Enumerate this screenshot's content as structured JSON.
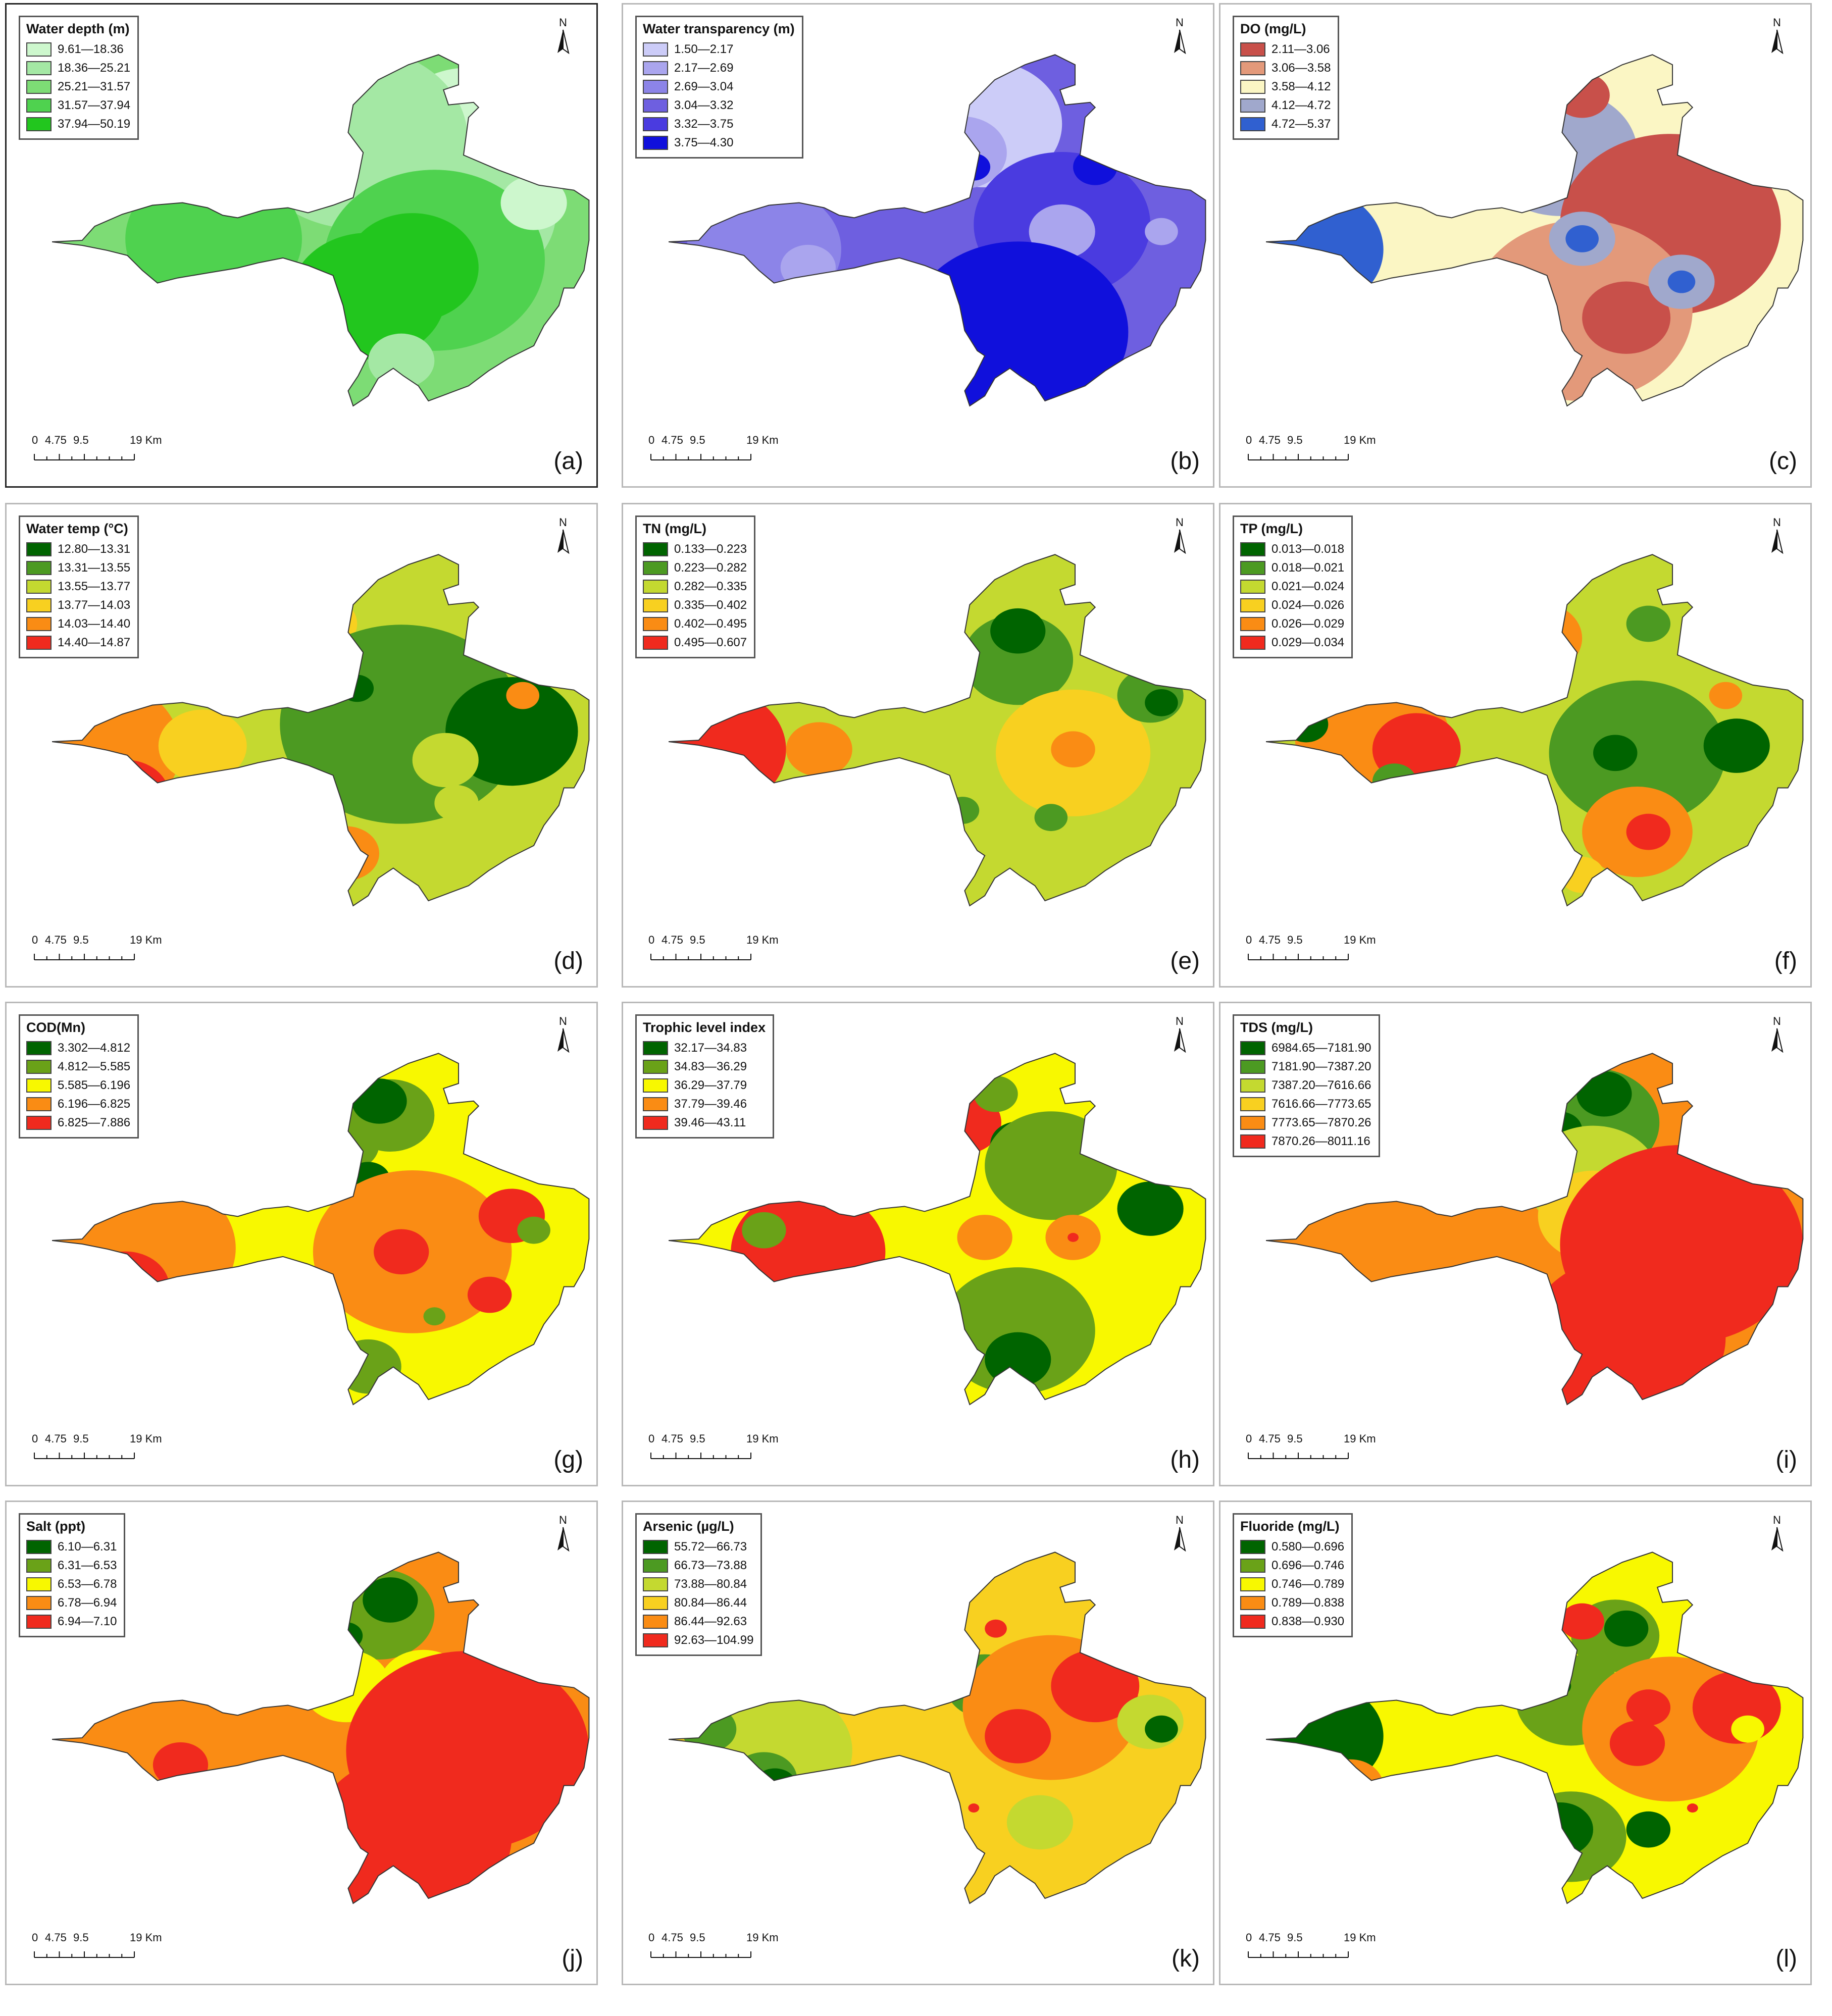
{
  "north_label": "N",
  "scale_labels": [
    "0",
    "4.75",
    "9.5",
    "19 Km"
  ],
  "panels": [
    {
      "label": "(a)",
      "title": "Water depth (m)",
      "classes": [
        "9.61—18.36",
        "18.36—25.21",
        "25.21—31.57",
        "31.57—37.94",
        "37.94—50.19"
      ],
      "colors": [
        "#cdf7cd",
        "#a4e8a4",
        "#7ddc75",
        "#4fd24f",
        "#22c61e"
      ],
      "base": 2,
      "blobs": [
        [
          0.78,
          0.22,
          0.14,
          0
        ],
        [
          0.58,
          0.24,
          0.2,
          1
        ],
        [
          0.78,
          0.45,
          0.16,
          1
        ],
        [
          0.32,
          0.52,
          0.16,
          3
        ],
        [
          0.72,
          0.58,
          0.2,
          3
        ],
        [
          0.68,
          0.6,
          0.12,
          4
        ],
        [
          0.6,
          0.68,
          0.14,
          4
        ],
        [
          0.66,
          0.86,
          0.06,
          1
        ],
        [
          0.9,
          0.42,
          0.06,
          0
        ]
      ]
    },
    {
      "label": "(b)",
      "title": "Water transparency (m)",
      "classes": [
        "1.50—2.17",
        "2.17—2.69",
        "2.69—3.04",
        "3.04—3.32",
        "3.32—3.75",
        "3.75—4.30"
      ],
      "colors": [
        "#ccccf8",
        "#aaa5ee",
        "#8c84e8",
        "#6e5fe0",
        "#4a3be0",
        "#1010dc"
      ],
      "base": 3,
      "blobs": [
        [
          0.6,
          0.2,
          0.14,
          0
        ],
        [
          0.56,
          0.28,
          0.08,
          1
        ],
        [
          0.2,
          0.55,
          0.14,
          2
        ],
        [
          0.28,
          0.6,
          0.05,
          1
        ],
        [
          0.74,
          0.48,
          0.16,
          4
        ],
        [
          0.74,
          0.5,
          0.06,
          1
        ],
        [
          0.66,
          0.78,
          0.2,
          5
        ],
        [
          0.64,
          0.88,
          0.16,
          5
        ],
        [
          0.8,
          0.32,
          0.04,
          5
        ],
        [
          0.58,
          0.32,
          0.03,
          5
        ],
        [
          0.92,
          0.5,
          0.03,
          1
        ]
      ]
    },
    {
      "label": "(c)",
      "title": "DO (mg/L)",
      "classes": [
        "2.11—3.06",
        "3.06—3.58",
        "3.58—4.12",
        "4.12—4.72",
        "4.72—5.37"
      ],
      "colors": [
        "#c8504a",
        "#e3997a",
        "#fbf6c4",
        "#a0a8cc",
        "#3060d0"
      ],
      "base": 2,
      "blobs": [
        [
          0.1,
          0.55,
          0.14,
          4
        ],
        [
          0.3,
          0.5,
          0.06,
          2
        ],
        [
          0.56,
          0.28,
          0.14,
          3
        ],
        [
          0.76,
          0.48,
          0.2,
          0
        ],
        [
          0.6,
          0.72,
          0.2,
          1
        ],
        [
          0.68,
          0.74,
          0.08,
          0
        ],
        [
          0.78,
          0.64,
          0.06,
          3
        ],
        [
          0.78,
          0.64,
          0.025,
          4
        ],
        [
          0.6,
          0.52,
          0.06,
          3
        ],
        [
          0.6,
          0.52,
          0.03,
          4
        ],
        [
          0.5,
          0.26,
          0.04,
          4
        ],
        [
          0.6,
          0.12,
          0.05,
          0
        ],
        [
          0.66,
          0.4,
          0.03,
          0
        ]
      ]
    },
    {
      "label": "(d)",
      "title": "Water temp (°C)",
      "classes": [
        "12.80—13.31",
        "13.31—13.55",
        "13.55—13.77",
        "13.77—14.03",
        "14.03—14.40",
        "14.40—14.87"
      ],
      "colors": [
        "#006400",
        "#4c9a22",
        "#c4d930",
        "#f8d020",
        "#fa8c14",
        "#f02a1e"
      ],
      "base": 2,
      "blobs": [
        [
          0.1,
          0.55,
          0.16,
          4
        ],
        [
          0.16,
          0.68,
          0.08,
          5
        ],
        [
          0.3,
          0.54,
          0.08,
          3
        ],
        [
          0.52,
          0.2,
          0.06,
          3
        ],
        [
          0.66,
          0.48,
          0.22,
          1
        ],
        [
          0.86,
          0.5,
          0.12,
          0
        ],
        [
          0.74,
          0.58,
          0.06,
          2
        ],
        [
          0.76,
          0.7,
          0.04,
          2
        ],
        [
          0.56,
          0.84,
          0.06,
          4
        ],
        [
          0.58,
          0.38,
          0.03,
          0
        ],
        [
          0.88,
          0.4,
          0.03,
          4
        ]
      ]
    },
    {
      "label": "(e)",
      "title": "TN (mg/L)",
      "classes": [
        "0.133—0.223",
        "0.223—0.282",
        "0.282—0.335",
        "0.335—0.402",
        "0.402—0.495",
        "0.495—0.607"
      ],
      "colors": [
        "#006400",
        "#4c9a22",
        "#c4d930",
        "#f8d020",
        "#fa8c14",
        "#f02a1e"
      ],
      "base": 2,
      "blobs": [
        [
          0.1,
          0.55,
          0.14,
          5
        ],
        [
          0.3,
          0.55,
          0.06,
          4
        ],
        [
          0.5,
          0.2,
          0.05,
          4
        ],
        [
          0.66,
          0.3,
          0.1,
          1
        ],
        [
          0.66,
          0.22,
          0.05,
          0
        ],
        [
          0.76,
          0.56,
          0.14,
          3
        ],
        [
          0.76,
          0.55,
          0.04,
          4
        ],
        [
          0.9,
          0.4,
          0.06,
          1
        ],
        [
          0.92,
          0.42,
          0.03,
          0
        ],
        [
          0.56,
          0.72,
          0.03,
          1
        ],
        [
          0.72,
          0.74,
          0.03,
          1
        ]
      ]
    },
    {
      "label": "(f)",
      "title": "TP (mg/L)",
      "classes": [
        "0.013—0.018",
        "0.018—0.021",
        "0.021—0.024",
        "0.024—0.026",
        "0.026—0.029",
        "0.029—0.034"
      ],
      "colors": [
        "#006400",
        "#4c9a22",
        "#c4d930",
        "#f8d020",
        "#fa8c14",
        "#f02a1e"
      ],
      "base": 2,
      "blobs": [
        [
          0.22,
          0.52,
          0.14,
          4
        ],
        [
          0.3,
          0.55,
          0.08,
          5
        ],
        [
          0.1,
          0.48,
          0.04,
          0
        ],
        [
          0.26,
          0.64,
          0.04,
          1
        ],
        [
          0.52,
          0.24,
          0.08,
          4
        ],
        [
          0.7,
          0.56,
          0.16,
          1
        ],
        [
          0.66,
          0.56,
          0.04,
          0
        ],
        [
          0.88,
          0.54,
          0.06,
          0
        ],
        [
          0.7,
          0.78,
          0.1,
          4
        ],
        [
          0.72,
          0.78,
          0.04,
          5
        ],
        [
          0.6,
          0.9,
          0.04,
          3
        ],
        [
          0.86,
          0.4,
          0.03,
          4
        ],
        [
          0.72,
          0.2,
          0.04,
          1
        ]
      ]
    },
    {
      "label": "(g)",
      "title": "COD(Mn)",
      "classes": [
        "3.302—4.812",
        "4.812—5.585",
        "5.585—6.196",
        "6.196—6.825",
        "6.825—7.886"
      ],
      "colors": [
        "#006400",
        "#6aa218",
        "#f8f800",
        "#fa8c14",
        "#f02a1e"
      ],
      "base": 2,
      "blobs": [
        [
          0.2,
          0.55,
          0.16,
          3
        ],
        [
          0.16,
          0.66,
          0.08,
          4
        ],
        [
          0.64,
          0.18,
          0.08,
          1
        ],
        [
          0.62,
          0.14,
          0.05,
          0
        ],
        [
          0.56,
          0.26,
          0.06,
          1
        ],
        [
          0.6,
          0.36,
          0.04,
          0
        ],
        [
          0.48,
          0.26,
          0.05,
          3
        ],
        [
          0.68,
          0.56,
          0.18,
          3
        ],
        [
          0.66,
          0.56,
          0.05,
          4
        ],
        [
          0.82,
          0.68,
          0.04,
          4
        ],
        [
          0.86,
          0.46,
          0.06,
          4
        ],
        [
          0.9,
          0.5,
          0.03,
          1
        ],
        [
          0.6,
          0.88,
          0.06,
          1
        ],
        [
          0.72,
          0.74,
          0.02,
          1
        ]
      ]
    },
    {
      "label": "(h)",
      "title": "Trophic level index",
      "classes": [
        "32.17—34.83",
        "34.83—36.29",
        "36.29—37.79",
        "37.79—39.46",
        "39.46—43.11"
      ],
      "colors": [
        "#006400",
        "#6aa218",
        "#f8f800",
        "#fa8c14",
        "#f02a1e"
      ],
      "base": 2,
      "blobs": [
        [
          0.28,
          0.56,
          0.14,
          4
        ],
        [
          0.2,
          0.5,
          0.04,
          1
        ],
        [
          0.56,
          0.2,
          0.07,
          4
        ],
        [
          0.62,
          0.12,
          0.04,
          1
        ],
        [
          0.66,
          0.26,
          0.05,
          0
        ],
        [
          0.72,
          0.32,
          0.12,
          1
        ],
        [
          0.66,
          0.78,
          0.14,
          1
        ],
        [
          0.66,
          0.86,
          0.06,
          0
        ],
        [
          0.6,
          0.52,
          0.05,
          3
        ],
        [
          0.76,
          0.52,
          0.05,
          3
        ],
        [
          0.76,
          0.52,
          0.01,
          4
        ],
        [
          0.9,
          0.44,
          0.06,
          0
        ]
      ]
    },
    {
      "label": "(i)",
      "title": "TDS (mg/L)",
      "classes": [
        "6984.65—7181.90",
        "7181.90—7387.20",
        "7387.20—7616.66",
        "7616.66—7773.65",
        "7773.65—7870.26",
        "7870.26—8011.16"
      ],
      "colors": [
        "#006400",
        "#4c9a22",
        "#c4d930",
        "#f8d020",
        "#fa8c14",
        "#f02a1e"
      ],
      "base": 4,
      "blobs": [
        [
          0.62,
          0.2,
          0.12,
          1
        ],
        [
          0.64,
          0.12,
          0.05,
          0
        ],
        [
          0.56,
          0.22,
          0.04,
          0
        ],
        [
          0.62,
          0.36,
          0.12,
          2
        ],
        [
          0.62,
          0.46,
          0.1,
          3
        ],
        [
          0.66,
          0.46,
          0.03,
          5
        ],
        [
          0.78,
          0.54,
          0.22,
          5
        ],
        [
          0.68,
          0.8,
          0.18,
          5
        ]
      ]
    },
    {
      "label": "(j)",
      "title": "Salt (ppt)",
      "classes": [
        "6.10—6.31",
        "6.31—6.53",
        "6.53—6.78",
        "6.78—6.94",
        "6.94—7.10"
      ],
      "colors": [
        "#006400",
        "#6aa218",
        "#f8f800",
        "#fa8c14",
        "#f02a1e"
      ],
      "base": 3,
      "blobs": [
        [
          0.62,
          0.18,
          0.1,
          1
        ],
        [
          0.64,
          0.14,
          0.05,
          0
        ],
        [
          0.56,
          0.24,
          0.03,
          0
        ],
        [
          0.56,
          0.38,
          0.08,
          2
        ],
        [
          0.7,
          0.38,
          0.08,
          2
        ],
        [
          0.78,
          0.56,
          0.22,
          4
        ],
        [
          0.68,
          0.8,
          0.18,
          4
        ],
        [
          0.26,
          0.6,
          0.05,
          4
        ]
      ]
    },
    {
      "label": "(k)",
      "title": "Arsenic (µg/L)",
      "classes": [
        "55.72—66.73",
        "66.73—73.88",
        "73.88—80.84",
        "80.84—86.44",
        "86.44—92.63",
        "92.63—104.99"
      ],
      "colors": [
        "#006400",
        "#4c9a22",
        "#c4d930",
        "#f8d020",
        "#fa8c14",
        "#f02a1e"
      ],
      "base": 3,
      "blobs": [
        [
          0.22,
          0.56,
          0.14,
          2
        ],
        [
          0.1,
          0.5,
          0.05,
          1
        ],
        [
          0.2,
          0.64,
          0.06,
          1
        ],
        [
          0.22,
          0.66,
          0.04,
          0
        ],
        [
          0.6,
          0.2,
          0.08,
          3
        ],
        [
          0.62,
          0.22,
          0.02,
          5
        ],
        [
          0.6,
          0.38,
          0.07,
          1
        ],
        [
          0.6,
          0.38,
          0.03,
          2
        ],
        [
          0.72,
          0.44,
          0.16,
          4
        ],
        [
          0.8,
          0.38,
          0.08,
          5
        ],
        [
          0.66,
          0.52,
          0.06,
          5
        ],
        [
          0.9,
          0.48,
          0.06,
          2
        ],
        [
          0.92,
          0.5,
          0.03,
          0
        ],
        [
          0.7,
          0.76,
          0.06,
          2
        ],
        [
          0.58,
          0.72,
          0.01,
          5
        ]
      ]
    },
    {
      "label": "(l)",
      "title": "Fluoride (mg/L)",
      "classes": [
        "0.580—0.696",
        "0.696—0.746",
        "0.746—0.789",
        "0.789—0.838",
        "0.838—0.930"
      ],
      "colors": [
        "#006400",
        "#6aa218",
        "#f8f800",
        "#fa8c14",
        "#f02a1e"
      ],
      "base": 2,
      "blobs": [
        [
          0.12,
          0.52,
          0.12,
          0
        ],
        [
          0.18,
          0.66,
          0.06,
          3
        ],
        [
          0.2,
          0.68,
          0.02,
          4
        ],
        [
          0.66,
          0.24,
          0.08,
          1
        ],
        [
          0.68,
          0.22,
          0.04,
          0
        ],
        [
          0.6,
          0.2,
          0.04,
          4
        ],
        [
          0.58,
          0.42,
          0.1,
          1
        ],
        [
          0.56,
          0.38,
          0.02,
          0
        ],
        [
          0.76,
          0.5,
          0.16,
          3
        ],
        [
          0.7,
          0.54,
          0.05,
          4
        ],
        [
          0.72,
          0.44,
          0.04,
          4
        ],
        [
          0.88,
          0.44,
          0.08,
          4
        ],
        [
          0.9,
          0.5,
          0.03,
          2
        ],
        [
          0.58,
          0.8,
          0.1,
          1
        ],
        [
          0.56,
          0.78,
          0.06,
          0
        ],
        [
          0.72,
          0.78,
          0.04,
          0
        ],
        [
          0.8,
          0.72,
          0.01,
          4
        ]
      ]
    }
  ]
}
